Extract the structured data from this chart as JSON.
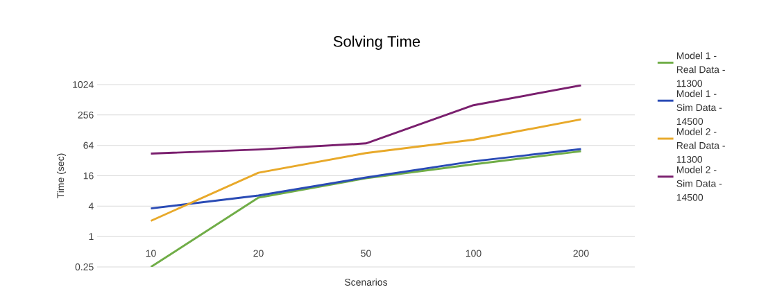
{
  "chart_data": {
    "type": "line",
    "title": "Solving Time",
    "xlabel": "Scenarios",
    "ylabel": "Time (sec)",
    "categories": [
      "10",
      "20",
      "50",
      "100",
      "200"
    ],
    "log": "y",
    "ylim": [
      0.25,
      1024
    ],
    "yticks": [
      0.25,
      1,
      4,
      16,
      64,
      256,
      1024
    ],
    "grid": "y",
    "legend": "right",
    "marker": "none",
    "line_style": "solid",
    "series": [
      {
        "name": "Model 1 - Real Data - 11300",
        "color": "#70ad47",
        "values": [
          0.25,
          5.9,
          14.3,
          27,
          49
        ]
      },
      {
        "name": "Model 1 - Sim Data - 14500",
        "color": "#2a4bb5",
        "values": [
          3.6,
          6.5,
          14.8,
          31,
          54
        ]
      },
      {
        "name": "Model 2 - Real Data - 11300",
        "color": "#e8a92a",
        "values": [
          2.05,
          18.4,
          45,
          83,
          210
        ]
      },
      {
        "name": "Model 2 - Sim Data - 14500",
        "color": "#7a1f6e",
        "values": [
          44,
          53,
          70,
          400,
          990
        ]
      }
    ]
  }
}
